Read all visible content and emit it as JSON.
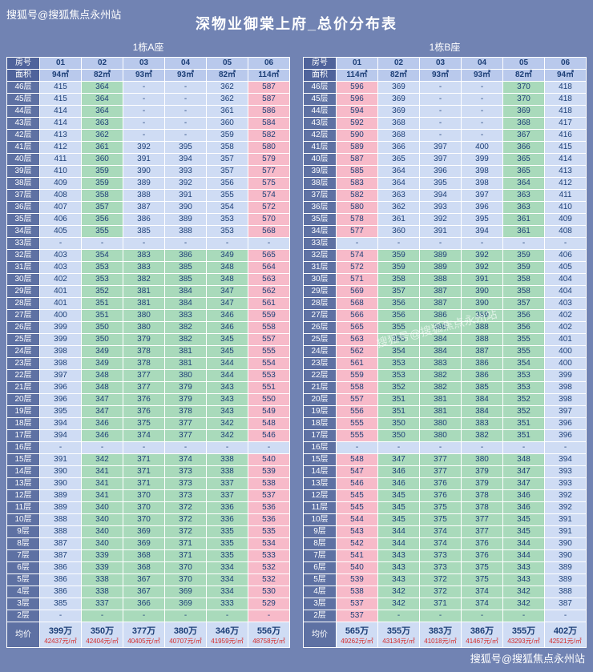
{
  "title": "深物业御棠上府_总价分布表",
  "watermarks": {
    "top": "搜狐号@搜狐焦点永州站",
    "middle": "搜狐号@搜狐焦点永州站",
    "bottom": "搜狐号@搜狐焦点永州站"
  },
  "palette": {
    "page_bg": "#7183b3",
    "label_bg": "#5e71a3",
    "corner_bg": "#4f639b",
    "header_bg": "#b9c9ec",
    "cell_blue": "#cfdcf4",
    "cell_green": "#a9dabb",
    "cell_pink": "#f7bac9",
    "text_navy": "#1d3f77",
    "unit_price_red": "#d42a2a",
    "grid_white": "#ffffff"
  },
  "chart_data": [
    {
      "type": "table",
      "caption": "1栋A座",
      "room_label": "房号",
      "area_label": "面积",
      "avg_label": "均价",
      "columns": [
        "01",
        "02",
        "03",
        "04",
        "05",
        "06"
      ],
      "areas": [
        "94㎡",
        "82㎡",
        "93㎡",
        "93㎡",
        "82㎡",
        "114㎡"
      ],
      "rows": [
        [
          "46层",
          [
            "415",
            "364",
            "-",
            "-",
            "362",
            "587"
          ],
          "bgbbbp"
        ],
        [
          "45层",
          [
            "415",
            "364",
            "-",
            "-",
            "362",
            "587"
          ],
          "bgbbbp"
        ],
        [
          "44层",
          [
            "414",
            "364",
            "-",
            "-",
            "361",
            "586"
          ],
          "bgbbbp"
        ],
        [
          "43层",
          [
            "414",
            "363",
            "-",
            "-",
            "360",
            "584"
          ],
          "bgbbbp"
        ],
        [
          "42层",
          [
            "413",
            "362",
            "-",
            "-",
            "359",
            "582"
          ],
          "bgbbbp"
        ],
        [
          "41层",
          [
            "412",
            "361",
            "392",
            "395",
            "358",
            "580"
          ],
          "bgbbbp"
        ],
        [
          "40层",
          [
            "411",
            "360",
            "391",
            "394",
            "357",
            "579"
          ],
          "bgbbbp"
        ],
        [
          "39层",
          [
            "410",
            "359",
            "390",
            "393",
            "357",
            "577"
          ],
          "bgbbbp"
        ],
        [
          "38层",
          [
            "409",
            "359",
            "389",
            "392",
            "356",
            "575"
          ],
          "bgbbbp"
        ],
        [
          "37层",
          [
            "408",
            "358",
            "388",
            "391",
            "355",
            "574"
          ],
          "bgbbbp"
        ],
        [
          "36层",
          [
            "407",
            "357",
            "387",
            "390",
            "354",
            "572"
          ],
          "bgbbbp"
        ],
        [
          "35层",
          [
            "406",
            "356",
            "386",
            "389",
            "353",
            "570"
          ],
          "bgbbbp"
        ],
        [
          "34层",
          [
            "405",
            "355",
            "385",
            "388",
            "353",
            "568"
          ],
          "bgbbbp"
        ],
        [
          "33层",
          [
            "-",
            "-",
            "-",
            "-",
            "-",
            "-"
          ],
          "bbbbbb"
        ],
        [
          "32层",
          [
            "403",
            "354",
            "383",
            "386",
            "349",
            "565"
          ],
          "bggggp"
        ],
        [
          "31层",
          [
            "403",
            "353",
            "383",
            "385",
            "348",
            "564"
          ],
          "bggggp"
        ],
        [
          "30层",
          [
            "402",
            "353",
            "382",
            "385",
            "348",
            "563"
          ],
          "bggggp"
        ],
        [
          "29层",
          [
            "401",
            "352",
            "381",
            "384",
            "347",
            "562"
          ],
          "bggggp"
        ],
        [
          "28层",
          [
            "401",
            "351",
            "381",
            "384",
            "347",
            "561"
          ],
          "bggggp"
        ],
        [
          "27层",
          [
            "400",
            "351",
            "380",
            "383",
            "346",
            "559"
          ],
          "bggggp"
        ],
        [
          "26层",
          [
            "399",
            "350",
            "380",
            "382",
            "346",
            "558"
          ],
          "bggggp"
        ],
        [
          "25层",
          [
            "399",
            "350",
            "379",
            "382",
            "345",
            "557"
          ],
          "bggggp"
        ],
        [
          "24层",
          [
            "398",
            "349",
            "378",
            "381",
            "345",
            "555"
          ],
          "bggggp"
        ],
        [
          "23层",
          [
            "398",
            "349",
            "378",
            "381",
            "344",
            "554"
          ],
          "bggggp"
        ],
        [
          "22层",
          [
            "397",
            "348",
            "377",
            "380",
            "344",
            "553"
          ],
          "bggggp"
        ],
        [
          "21层",
          [
            "396",
            "348",
            "377",
            "379",
            "343",
            "551"
          ],
          "bggggp"
        ],
        [
          "20层",
          [
            "396",
            "347",
            "376",
            "379",
            "343",
            "550"
          ],
          "bggggp"
        ],
        [
          "19层",
          [
            "395",
            "347",
            "376",
            "378",
            "343",
            "549"
          ],
          "bggggp"
        ],
        [
          "18层",
          [
            "394",
            "346",
            "375",
            "377",
            "342",
            "548"
          ],
          "bggggp"
        ],
        [
          "17层",
          [
            "394",
            "346",
            "374",
            "377",
            "342",
            "546"
          ],
          "bggggp"
        ],
        [
          "16层",
          [
            "-",
            "-",
            "-",
            "-",
            "-",
            "-"
          ],
          "bbbbbb"
        ],
        [
          "15层",
          [
            "391",
            "342",
            "371",
            "374",
            "338",
            "540"
          ],
          "bggggp"
        ],
        [
          "14层",
          [
            "390",
            "341",
            "371",
            "373",
            "338",
            "539"
          ],
          "bggggp"
        ],
        [
          "13层",
          [
            "390",
            "341",
            "371",
            "373",
            "337",
            "538"
          ],
          "bggggp"
        ],
        [
          "12层",
          [
            "389",
            "341",
            "370",
            "373",
            "337",
            "537"
          ],
          "bggggp"
        ],
        [
          "11层",
          [
            "389",
            "340",
            "370",
            "372",
            "336",
            "536"
          ],
          "bggggp"
        ],
        [
          "10层",
          [
            "388",
            "340",
            "370",
            "372",
            "336",
            "536"
          ],
          "bggggp"
        ],
        [
          "9层",
          [
            "388",
            "340",
            "369",
            "372",
            "335",
            "535"
          ],
          "bggggp"
        ],
        [
          "8层",
          [
            "387",
            "340",
            "369",
            "371",
            "335",
            "534"
          ],
          "bggggp"
        ],
        [
          "7层",
          [
            "387",
            "339",
            "368",
            "371",
            "335",
            "533"
          ],
          "bggggp"
        ],
        [
          "6层",
          [
            "386",
            "339",
            "368",
            "370",
            "334",
            "532"
          ],
          "bggggp"
        ],
        [
          "5层",
          [
            "386",
            "338",
            "367",
            "370",
            "334",
            "532"
          ],
          "bggggp"
        ],
        [
          "4层",
          [
            "386",
            "338",
            "367",
            "369",
            "334",
            "530"
          ],
          "bggggp"
        ],
        [
          "3层",
          [
            "385",
            "337",
            "366",
            "369",
            "333",
            "529"
          ],
          "bggggp"
        ],
        [
          "2层",
          [
            "-",
            "-",
            "-",
            "-",
            "-",
            "-"
          ],
          "bggggp"
        ]
      ],
      "avg_prices": [
        "399万",
        "350万",
        "377万",
        "380万",
        "346万",
        "556万"
      ],
      "avg_units": [
        "42437元/㎡",
        "42404元/㎡",
        "40405元/㎡",
        "40707元/㎡",
        "41959元/㎡",
        "48758元/㎡"
      ]
    },
    {
      "type": "table",
      "caption": "1栋B座",
      "room_label": "房号",
      "area_label": "面积",
      "avg_label": "均价",
      "columns": [
        "01",
        "02",
        "03",
        "04",
        "05",
        "06"
      ],
      "areas": [
        "114㎡",
        "82㎡",
        "93㎡",
        "93㎡",
        "82㎡",
        "94㎡"
      ],
      "rows": [
        [
          "46层",
          [
            "596",
            "369",
            "-",
            "-",
            "370",
            "418"
          ],
          "pbbbgb"
        ],
        [
          "45层",
          [
            "596",
            "369",
            "-",
            "-",
            "370",
            "418"
          ],
          "pbbbgb"
        ],
        [
          "44层",
          [
            "594",
            "369",
            "-",
            "-",
            "369",
            "418"
          ],
          "pbbbgb"
        ],
        [
          "43层",
          [
            "592",
            "368",
            "-",
            "-",
            "368",
            "417"
          ],
          "pbbbgb"
        ],
        [
          "42层",
          [
            "590",
            "368",
            "-",
            "-",
            "367",
            "416"
          ],
          "pbbbgb"
        ],
        [
          "41层",
          [
            "589",
            "366",
            "397",
            "400",
            "366",
            "415"
          ],
          "pbbbgb"
        ],
        [
          "40层",
          [
            "587",
            "365",
            "397",
            "399",
            "365",
            "414"
          ],
          "pbbbgb"
        ],
        [
          "39层",
          [
            "585",
            "364",
            "396",
            "398",
            "365",
            "413"
          ],
          "pbbbgb"
        ],
        [
          "38层",
          [
            "583",
            "364",
            "395",
            "398",
            "364",
            "412"
          ],
          "pbbbgb"
        ],
        [
          "37层",
          [
            "582",
            "363",
            "394",
            "397",
            "363",
            "411"
          ],
          "pbbbgb"
        ],
        [
          "36层",
          [
            "580",
            "362",
            "393",
            "396",
            "363",
            "410"
          ],
          "pbbbgb"
        ],
        [
          "35层",
          [
            "578",
            "361",
            "392",
            "395",
            "361",
            "409"
          ],
          "pbbbgb"
        ],
        [
          "34层",
          [
            "577",
            "360",
            "391",
            "394",
            "361",
            "408"
          ],
          "pbbbgb"
        ],
        [
          "33层",
          [
            "-",
            "-",
            "-",
            "-",
            "-",
            "-"
          ],
          "bbbbbb"
        ],
        [
          "32层",
          [
            "574",
            "359",
            "389",
            "392",
            "359",
            "406"
          ],
          "pggggb"
        ],
        [
          "31层",
          [
            "572",
            "359",
            "389",
            "392",
            "359",
            "405"
          ],
          "pggggb"
        ],
        [
          "30层",
          [
            "571",
            "358",
            "388",
            "391",
            "358",
            "404"
          ],
          "pggggb"
        ],
        [
          "29层",
          [
            "569",
            "357",
            "387",
            "390",
            "358",
            "404"
          ],
          "pggggb"
        ],
        [
          "28层",
          [
            "568",
            "356",
            "387",
            "390",
            "357",
            "403"
          ],
          "pggggb"
        ],
        [
          "27层",
          [
            "566",
            "356",
            "386",
            "389",
            "356",
            "402"
          ],
          "pggggb"
        ],
        [
          "26层",
          [
            "565",
            "355",
            "385",
            "388",
            "356",
            "402"
          ],
          "pggggb"
        ],
        [
          "25层",
          [
            "563",
            "355",
            "384",
            "388",
            "355",
            "401"
          ],
          "pggggb"
        ],
        [
          "24层",
          [
            "562",
            "354",
            "384",
            "387",
            "355",
            "400"
          ],
          "pggggb"
        ],
        [
          "23层",
          [
            "561",
            "353",
            "383",
            "386",
            "354",
            "400"
          ],
          "pggggb"
        ],
        [
          "22层",
          [
            "559",
            "353",
            "382",
            "386",
            "353",
            "399"
          ],
          "pggggb"
        ],
        [
          "21层",
          [
            "558",
            "352",
            "382",
            "385",
            "353",
            "398"
          ],
          "pggggb"
        ],
        [
          "20层",
          [
            "557",
            "351",
            "381",
            "384",
            "352",
            "398"
          ],
          "pggggb"
        ],
        [
          "19层",
          [
            "556",
            "351",
            "381",
            "384",
            "352",
            "397"
          ],
          "pggggb"
        ],
        [
          "18层",
          [
            "555",
            "350",
            "380",
            "383",
            "351",
            "396"
          ],
          "pggggb"
        ],
        [
          "17层",
          [
            "555",
            "350",
            "380",
            "382",
            "351",
            "396"
          ],
          "pggggb"
        ],
        [
          "16层",
          [
            "-",
            "-",
            "-",
            "-",
            "-",
            "-"
          ],
          "bbbbbb"
        ],
        [
          "15层",
          [
            "548",
            "347",
            "377",
            "380",
            "348",
            "394"
          ],
          "pggggb"
        ],
        [
          "14层",
          [
            "547",
            "346",
            "377",
            "379",
            "347",
            "393"
          ],
          "pggggb"
        ],
        [
          "13层",
          [
            "546",
            "346",
            "376",
            "379",
            "347",
            "393"
          ],
          "pggggb"
        ],
        [
          "12层",
          [
            "545",
            "345",
            "376",
            "378",
            "346",
            "392"
          ],
          "pggggb"
        ],
        [
          "11层",
          [
            "545",
            "345",
            "375",
            "378",
            "346",
            "392"
          ],
          "pggggb"
        ],
        [
          "10层",
          [
            "544",
            "345",
            "375",
            "377",
            "345",
            "391"
          ],
          "pggggb"
        ],
        [
          "9层",
          [
            "543",
            "344",
            "374",
            "377",
            "345",
            "391"
          ],
          "pggggb"
        ],
        [
          "8层",
          [
            "542",
            "344",
            "374",
            "376",
            "344",
            "390"
          ],
          "pggggb"
        ],
        [
          "7层",
          [
            "541",
            "343",
            "373",
            "376",
            "344",
            "390"
          ],
          "pggggb"
        ],
        [
          "6层",
          [
            "540",
            "343",
            "373",
            "375",
            "343",
            "389"
          ],
          "pggggb"
        ],
        [
          "5层",
          [
            "539",
            "343",
            "372",
            "375",
            "343",
            "389"
          ],
          "pggggb"
        ],
        [
          "4层",
          [
            "538",
            "342",
            "372",
            "374",
            "342",
            "388"
          ],
          "pggggb"
        ],
        [
          "3层",
          [
            "537",
            "342",
            "371",
            "374",
            "342",
            "387"
          ],
          "pggggb"
        ],
        [
          "2层",
          [
            "537",
            "-",
            "-",
            "-",
            "-",
            "-"
          ],
          "pggggb"
        ]
      ],
      "avg_prices": [
        "565万",
        "355万",
        "383万",
        "386万",
        "355万",
        "402万"
      ],
      "avg_units": [
        "49262元/㎡",
        "43134元/㎡",
        "41018元/㎡",
        "41467元/㎡",
        "43293元/㎡",
        "42521元/㎡"
      ]
    }
  ]
}
